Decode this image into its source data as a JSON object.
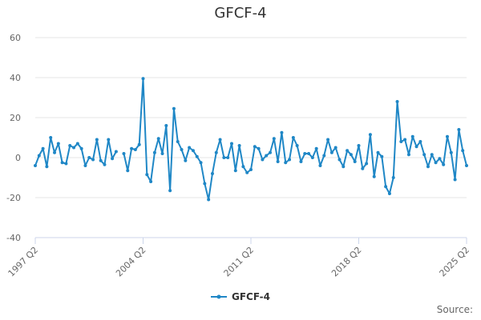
{
  "page": {
    "source_label": "Source:"
  },
  "chart_data": {
    "type": "line",
    "title": "GFCF-4",
    "xlabel": "",
    "ylabel": "",
    "ylim": [
      -40,
      60
    ],
    "yticks": [
      -40,
      -20,
      0,
      20,
      40,
      60
    ],
    "x_tick_labels": [
      "1997 Q2",
      "2004 Q2",
      "2011 Q2",
      "2018 Q2",
      "2025 Q2"
    ],
    "x_tick_index": [
      0,
      28,
      56,
      84,
      112
    ],
    "grid": true,
    "legend": "bottom-center",
    "colors": {
      "series": "#1f87c6",
      "grid": "#e6e6e6",
      "axis": "#ccd6eb",
      "tick_text": "#666666"
    },
    "series": [
      {
        "name": "GFCF-4",
        "values": [
          -4,
          1,
          4.5,
          -4.5,
          10,
          2.5,
          7,
          -2.5,
          -3,
          6,
          5,
          7,
          4.5,
          -4,
          0,
          -1,
          9,
          -1.5,
          -3.5,
          9,
          -0.5,
          3,
          null,
          2,
          -6.5,
          4.5,
          4,
          6.5,
          39.5,
          -8.5,
          -12,
          2.5,
          9.5,
          2,
          16,
          -16.5,
          24.5,
          8,
          4,
          -1.5,
          5,
          3.5,
          0.5,
          -2.5,
          -13,
          -21,
          -8,
          2.5,
          9,
          0,
          0,
          7,
          -6.5,
          6,
          -4.5,
          -7.5,
          -6,
          5.5,
          4.5,
          -1,
          1,
          2.5,
          9.5,
          -2,
          12.5,
          -2.5,
          -1,
          10,
          6,
          -2,
          2,
          2,
          0,
          4.5,
          -4,
          1,
          9,
          2.5,
          5,
          -1,
          -4.5,
          3.5,
          1.5,
          -2,
          6,
          -5.5,
          -3,
          11.5,
          -9.5,
          2.5,
          0.5,
          -14.5,
          -18,
          -10,
          28,
          8,
          9,
          1.5,
          10.5,
          5.5,
          8,
          1.5,
          -4.5,
          1.5,
          -2.5,
          -0.5,
          -3.5,
          10.5,
          2.5,
          -11,
          14,
          3.5,
          -4
        ]
      }
    ]
  }
}
